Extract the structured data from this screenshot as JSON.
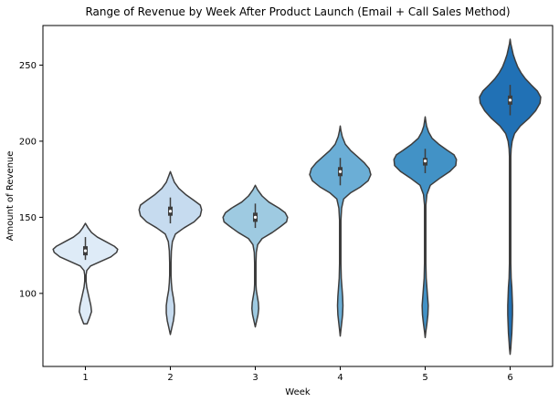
{
  "chart_data": {
    "type": "violin",
    "title": "Range of Revenue by Week After Product Launch (Email + Call Sales Method)",
    "xlabel": "Week",
    "ylabel": "Amount of Revenue",
    "ylim": [
      52,
      276
    ],
    "yticks": [
      100,
      150,
      200,
      250
    ],
    "grid": false,
    "categories": [
      "1",
      "2",
      "3",
      "4",
      "5",
      "6"
    ],
    "colors": [
      "#deebf7",
      "#c6dbef",
      "#9ecae1",
      "#6baed6",
      "#4292c6",
      "#2171b5"
    ],
    "series": [
      {
        "category": "1",
        "min": 80,
        "max": 146,
        "q1": 125,
        "median": 128,
        "q3": 131,
        "whisker_low": 122,
        "whisker_high": 137,
        "profile": [
          [
            80,
            0.05
          ],
          [
            84,
            0.12
          ],
          [
            88,
            0.18
          ],
          [
            92,
            0.16
          ],
          [
            96,
            0.12
          ],
          [
            100,
            0.08
          ],
          [
            104,
            0.04
          ],
          [
            108,
            0.02
          ],
          [
            112,
            0.02
          ],
          [
            115,
            0.04
          ],
          [
            118,
            0.15
          ],
          [
            121,
            0.45
          ],
          [
            124,
            0.75
          ],
          [
            127,
            0.92
          ],
          [
            129,
            0.95
          ],
          [
            131,
            0.85
          ],
          [
            134,
            0.6
          ],
          [
            137,
            0.35
          ],
          [
            140,
            0.18
          ],
          [
            143,
            0.08
          ],
          [
            146,
            0.0
          ]
        ]
      },
      {
        "category": "2",
        "min": 73,
        "max": 180,
        "q1": 151,
        "median": 154,
        "q3": 157,
        "whisker_low": 146,
        "whisker_high": 163,
        "profile": [
          [
            73,
            0.0
          ],
          [
            77,
            0.04
          ],
          [
            82,
            0.09
          ],
          [
            87,
            0.12
          ],
          [
            92,
            0.12
          ],
          [
            97,
            0.09
          ],
          [
            102,
            0.05
          ],
          [
            107,
            0.03
          ],
          [
            112,
            0.02
          ],
          [
            120,
            0.02
          ],
          [
            128,
            0.03
          ],
          [
            134,
            0.06
          ],
          [
            139,
            0.15
          ],
          [
            143,
            0.4
          ],
          [
            147,
            0.7
          ],
          [
            151,
            0.88
          ],
          [
            155,
            0.92
          ],
          [
            158,
            0.88
          ],
          [
            161,
            0.7
          ],
          [
            165,
            0.45
          ],
          [
            169,
            0.25
          ],
          [
            173,
            0.12
          ],
          [
            177,
            0.05
          ],
          [
            180,
            0.0
          ]
        ]
      },
      {
        "category": "3",
        "min": 78,
        "max": 171,
        "q1": 147,
        "median": 150,
        "q3": 153,
        "whisker_low": 143,
        "whisker_high": 159,
        "profile": [
          [
            78,
            0.0
          ],
          [
            82,
            0.04
          ],
          [
            86,
            0.08
          ],
          [
            90,
            0.1
          ],
          [
            94,
            0.09
          ],
          [
            98,
            0.06
          ],
          [
            102,
            0.03
          ],
          [
            106,
            0.02
          ],
          [
            112,
            0.02
          ],
          [
            120,
            0.02
          ],
          [
            127,
            0.03
          ],
          [
            132,
            0.07
          ],
          [
            136,
            0.2
          ],
          [
            140,
            0.5
          ],
          [
            144,
            0.75
          ],
          [
            147,
            0.92
          ],
          [
            150,
            0.95
          ],
          [
            153,
            0.88
          ],
          [
            156,
            0.7
          ],
          [
            160,
            0.4
          ],
          [
            164,
            0.2
          ],
          [
            168,
            0.07
          ],
          [
            171,
            0.0
          ]
        ]
      },
      {
        "category": "4",
        "min": 72,
        "max": 210,
        "q1": 177,
        "median": 180,
        "q3": 183,
        "whisker_low": 171,
        "whisker_high": 189,
        "profile": [
          [
            72,
            0.0
          ],
          [
            76,
            0.02
          ],
          [
            80,
            0.04
          ],
          [
            86,
            0.07
          ],
          [
            92,
            0.08
          ],
          [
            98,
            0.07
          ],
          [
            104,
            0.05
          ],
          [
            110,
            0.03
          ],
          [
            120,
            0.02
          ],
          [
            135,
            0.02
          ],
          [
            148,
            0.02
          ],
          [
            156,
            0.04
          ],
          [
            162,
            0.1
          ],
          [
            166,
            0.3
          ],
          [
            170,
            0.6
          ],
          [
            174,
            0.82
          ],
          [
            178,
            0.9
          ],
          [
            182,
            0.85
          ],
          [
            186,
            0.7
          ],
          [
            190,
            0.5
          ],
          [
            194,
            0.3
          ],
          [
            198,
            0.15
          ],
          [
            203,
            0.06
          ],
          [
            207,
            0.02
          ],
          [
            210,
            0.0
          ]
        ]
      },
      {
        "category": "5",
        "min": 71,
        "max": 216,
        "q1": 184,
        "median": 187,
        "q3": 189,
        "whisker_low": 179,
        "whisker_high": 195,
        "profile": [
          [
            71,
            0.0
          ],
          [
            75,
            0.02
          ],
          [
            80,
            0.05
          ],
          [
            86,
            0.08
          ],
          [
            92,
            0.09
          ],
          [
            98,
            0.07
          ],
          [
            104,
            0.05
          ],
          [
            110,
            0.03
          ],
          [
            120,
            0.02
          ],
          [
            140,
            0.02
          ],
          [
            158,
            0.02
          ],
          [
            165,
            0.05
          ],
          [
            171,
            0.15
          ],
          [
            176,
            0.45
          ],
          [
            180,
            0.72
          ],
          [
            184,
            0.9
          ],
          [
            188,
            0.92
          ],
          [
            191,
            0.85
          ],
          [
            194,
            0.65
          ],
          [
            198,
            0.4
          ],
          [
            202,
            0.2
          ],
          [
            206,
            0.1
          ],
          [
            210,
            0.04
          ],
          [
            213,
            0.02
          ],
          [
            216,
            0.0
          ]
        ]
      },
      {
        "category": "6",
        "min": 60,
        "max": 267,
        "q1": 224,
        "median": 227,
        "q3": 230,
        "whisker_low": 217,
        "whisker_high": 237,
        "profile": [
          [
            60,
            0.0
          ],
          [
            64,
            0.02
          ],
          [
            68,
            0.03
          ],
          [
            74,
            0.05
          ],
          [
            80,
            0.06
          ],
          [
            86,
            0.07
          ],
          [
            92,
            0.07
          ],
          [
            98,
            0.06
          ],
          [
            104,
            0.05
          ],
          [
            110,
            0.03
          ],
          [
            120,
            0.02
          ],
          [
            140,
            0.02
          ],
          [
            170,
            0.02
          ],
          [
            190,
            0.02
          ],
          [
            195,
            0.03
          ],
          [
            200,
            0.06
          ],
          [
            205,
            0.13
          ],
          [
            210,
            0.3
          ],
          [
            215,
            0.55
          ],
          [
            220,
            0.75
          ],
          [
            225,
            0.88
          ],
          [
            229,
            0.9
          ],
          [
            233,
            0.8
          ],
          [
            237,
            0.62
          ],
          [
            241,
            0.45
          ],
          [
            245,
            0.32
          ],
          [
            249,
            0.22
          ],
          [
            253,
            0.15
          ],
          [
            257,
            0.09
          ],
          [
            261,
            0.05
          ],
          [
            264,
            0.02
          ],
          [
            267,
            0.0
          ]
        ]
      }
    ]
  }
}
